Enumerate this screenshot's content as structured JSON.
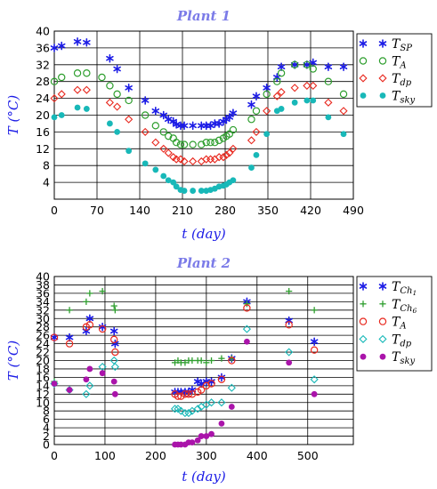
{
  "chart_data": [
    {
      "type": "scatter",
      "title": "Plant 1",
      "xlabel": "t (day)",
      "ylabel": "T (°C)",
      "xlim": [
        0,
        490
      ],
      "ylim": [
        0,
        40
      ],
      "xticks": [
        "0",
        "70",
        "140",
        "210",
        "280",
        "350",
        "420",
        "490"
      ],
      "yticks": [
        "4",
        "8",
        "12",
        "16",
        "20",
        "24",
        "28",
        "32",
        "36",
        "40"
      ],
      "grid": true,
      "legend_position": "right",
      "series": [
        {
          "name": "T_SP",
          "label_main": "T",
          "label_sub": "SP",
          "marker": "asterisk",
          "color": "#1c1ce6",
          "x": [
            0,
            12,
            38,
            53,
            91,
            103,
            122,
            149,
            166,
            179,
            187,
            195,
            200,
            207,
            213,
            227,
            241,
            249,
            256,
            263,
            270,
            277,
            282,
            287,
            293,
            323,
            331,
            348,
            365,
            372,
            394,
            414,
            424,
            449,
            474
          ],
          "y": [
            36,
            36.5,
            37.5,
            37.3,
            33.5,
            31,
            26.5,
            23.5,
            21,
            20,
            19,
            18.5,
            17.8,
            17.5,
            17.5,
            17.5,
            17.5,
            17.5,
            17.5,
            18,
            18,
            18.5,
            19,
            19.5,
            20.5,
            22.5,
            24.5,
            26.5,
            29,
            31.5,
            32,
            32,
            32.5,
            31.5,
            31.5
          ]
        },
        {
          "name": "T_A",
          "label_main": "T",
          "label_sub": "A",
          "marker": "circle",
          "color": "#2e9e2e",
          "x": [
            0,
            12,
            38,
            53,
            78,
            91,
            103,
            122,
            149,
            166,
            179,
            187,
            195,
            200,
            207,
            213,
            227,
            241,
            249,
            256,
            263,
            270,
            277,
            282,
            287,
            293,
            323,
            331,
            348,
            365,
            372,
            394,
            414,
            424,
            449,
            474
          ],
          "y": [
            28,
            29,
            30,
            30,
            29,
            27,
            25,
            23.5,
            20,
            17.5,
            16,
            15,
            14.5,
            13.5,
            13,
            13,
            13,
            13,
            13.5,
            13.5,
            13.5,
            14,
            14.5,
            15,
            15.5,
            16.5,
            19,
            21,
            25,
            28,
            30,
            32,
            32,
            31,
            28,
            25
          ]
        },
        {
          "name": "T_dp",
          "label_main": "T",
          "label_sub": "dp",
          "marker": "diamond",
          "color": "#e8281e",
          "x": [
            0,
            12,
            38,
            53,
            91,
            103,
            122,
            149,
            166,
            179,
            187,
            195,
            200,
            207,
            213,
            227,
            241,
            249,
            256,
            263,
            270,
            277,
            282,
            287,
            293,
            323,
            331,
            348,
            365,
            372,
            394,
            414,
            424,
            449,
            474
          ],
          "y": [
            24,
            25,
            26,
            26,
            23,
            22,
            19,
            16,
            13.5,
            12,
            11,
            10,
            9.5,
            9.5,
            9,
            9,
            9,
            9.5,
            9.5,
            9.5,
            10,
            10,
            10.5,
            11,
            12,
            14,
            16,
            21,
            24.5,
            25.5,
            26.5,
            27,
            27,
            23,
            21
          ]
        },
        {
          "name": "T_sky",
          "label_main": "T",
          "label_sub": "sky",
          "marker": "dot",
          "color": "#18b8b8",
          "x": [
            0,
            12,
            38,
            53,
            91,
            103,
            122,
            149,
            166,
            179,
            187,
            195,
            200,
            207,
            213,
            227,
            241,
            249,
            256,
            263,
            270,
            277,
            282,
            287,
            293,
            323,
            331,
            348,
            365,
            372,
            394,
            414,
            424,
            449,
            474
          ],
          "y": [
            19.5,
            20,
            21.8,
            21.5,
            18,
            16,
            11.5,
            8.5,
            7,
            5.5,
            4.5,
            4,
            3,
            2.2,
            2,
            2,
            2,
            2,
            2.2,
            2.5,
            3,
            3.2,
            3.5,
            4,
            4.5,
            7.5,
            10.5,
            15.5,
            21,
            21.5,
            23,
            23.5,
            23.5,
            19.5,
            15.5
          ]
        }
      ]
    },
    {
      "type": "scatter",
      "title": "Plant 2",
      "xlabel": "t (day)",
      "ylabel": "T (°C)",
      "xlim": [
        0,
        590
      ],
      "ylim": [
        0,
        40
      ],
      "xticks": [
        "0",
        "100",
        "200",
        "300",
        "400",
        "500"
      ],
      "yticks": [
        "0",
        "2",
        "4",
        "6",
        "8",
        "10",
        "12",
        "14",
        "16",
        "18",
        "20",
        "22",
        "24",
        "26",
        "28",
        "30",
        "32",
        "34",
        "36",
        "38",
        "40"
      ],
      "grid": true,
      "legend_position": "right",
      "series": [
        {
          "name": "T_Ch1",
          "label_main": "T",
          "label_sub": "Ch",
          "label_subsub": "1",
          "marker": "asterisk",
          "color": "#1c1ce6",
          "x": [
            0,
            30,
            63,
            70,
            95,
            118,
            120,
            238,
            244,
            250,
            258,
            265,
            272,
            283,
            290,
            300,
            310,
            330,
            350,
            380,
            463,
            513
          ],
          "y": [
            25.5,
            25.5,
            27,
            30,
            28,
            27,
            24,
            12.5,
            12.5,
            12.5,
            12.5,
            12.5,
            13,
            15,
            14.5,
            15,
            15,
            16,
            20.5,
            34,
            29.5,
            24.5
          ]
        },
        {
          "name": "T_Ch6",
          "label_main": "T",
          "label_sub": "Ch",
          "label_subsub": "6",
          "marker": "plus",
          "color": "#2e9e2e",
          "x": [
            0,
            30,
            63,
            70,
            95,
            118,
            120,
            238,
            244,
            250,
            258,
            265,
            272,
            283,
            290,
            300,
            310,
            330,
            350,
            380,
            463,
            513
          ],
          "y": [
            15,
            32,
            34,
            36,
            36.5,
            33,
            32,
            19.5,
            20,
            19.5,
            19.5,
            20,
            20,
            20,
            20,
            19.5,
            20,
            20.5,
            20.5,
            33.5,
            36.5,
            32
          ]
        },
        {
          "name": "T_A",
          "label_main": "T",
          "label_sub": "A",
          "marker": "circle",
          "color": "#e8281e",
          "x": [
            0,
            30,
            63,
            70,
            95,
            118,
            120,
            238,
            244,
            250,
            258,
            265,
            272,
            283,
            290,
            300,
            310,
            330,
            350,
            380,
            463,
            513
          ],
          "y": [
            25.5,
            24,
            28,
            28.5,
            27.5,
            25,
            22,
            12,
            11.5,
            11.5,
            12,
            12,
            12,
            12.5,
            13,
            14,
            14.5,
            15.5,
            20,
            32.5,
            28.5,
            22.5
          ]
        },
        {
          "name": "T_dp",
          "label_main": "T",
          "label_sub": "dp",
          "marker": "diamond",
          "color": "#18b8b8",
          "x": [
            0,
            30,
            63,
            70,
            95,
            118,
            120,
            238,
            244,
            250,
            258,
            265,
            272,
            283,
            290,
            300,
            310,
            330,
            350,
            380,
            463,
            513
          ],
          "y": [
            14.5,
            13,
            12,
            14,
            18.5,
            20,
            18.5,
            8.5,
            8.5,
            8,
            7.5,
            7.5,
            8,
            8.5,
            9,
            9.5,
            10,
            10,
            13.5,
            27.5,
            22,
            15.5
          ]
        },
        {
          "name": "T_sky",
          "label_main": "T",
          "label_sub": "sky",
          "marker": "dot",
          "color": "#aa14aa",
          "x": [
            0,
            30,
            63,
            70,
            95,
            118,
            120,
            238,
            244,
            250,
            258,
            265,
            272,
            283,
            290,
            300,
            310,
            330,
            350,
            380,
            463,
            513
          ],
          "y": [
            14.5,
            13,
            15.5,
            18,
            17,
            15,
            12,
            0,
            0,
            0,
            0,
            0.5,
            0.5,
            1,
            2,
            2,
            2.5,
            5,
            9,
            24.5,
            19.5,
            12
          ]
        }
      ]
    }
  ]
}
